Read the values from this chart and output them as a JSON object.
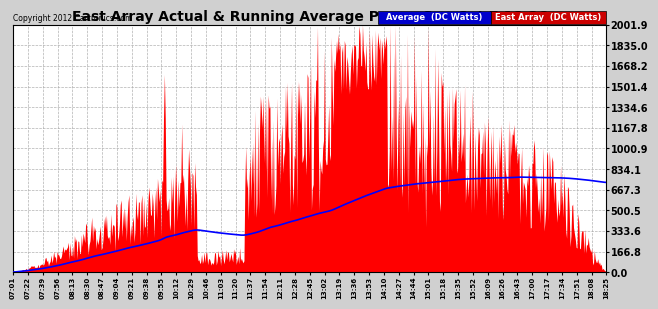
{
  "title": "East Array Actual & Running Average Power Sun Oct 7 18:26",
  "copyright": "Copyright 2012 Cartronics.com",
  "y_max": 2001.9,
  "y_ticks": [
    0.0,
    166.8,
    333.6,
    500.5,
    667.3,
    834.1,
    1000.9,
    1167.8,
    1334.6,
    1501.4,
    1668.2,
    1835.0,
    2001.9
  ],
  "bg_color": "#d0d0d0",
  "plot_bg_color": "#ffffff",
  "bar_color": "#ff0000",
  "avg_color": "#0000ff",
  "legend_avg_bg": "#0000cc",
  "legend_east_bg": "#cc0000",
  "legend_avg_text": "Average  (DC Watts)",
  "legend_east_text": "East Array  (DC Watts)",
  "x_labels": [
    "07:01",
    "07:22",
    "07:39",
    "07:56",
    "08:13",
    "08:30",
    "08:47",
    "09:04",
    "09:21",
    "09:38",
    "09:55",
    "10:12",
    "10:29",
    "10:46",
    "11:03",
    "11:20",
    "11:37",
    "11:54",
    "12:11",
    "12:28",
    "12:45",
    "13:02",
    "13:19",
    "13:36",
    "13:53",
    "14:10",
    "14:27",
    "14:44",
    "15:01",
    "15:18",
    "15:35",
    "15:52",
    "16:09",
    "16:26",
    "16:43",
    "17:00",
    "17:17",
    "17:34",
    "17:51",
    "18:08",
    "18:25"
  ]
}
